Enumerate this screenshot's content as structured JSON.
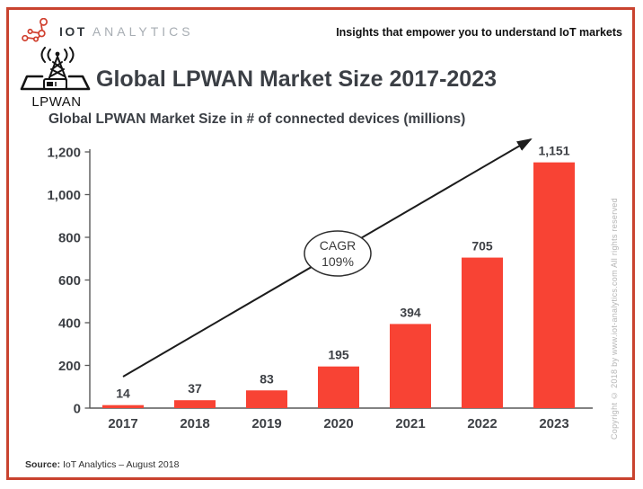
{
  "header": {
    "brand_bold": "IOT",
    "brand_light": "ANALYTICS",
    "tagline": "Insights that empower you to understand IoT markets"
  },
  "title_block": {
    "icon_label": "LPWAN",
    "title": "Global LPWAN Market Size 2017-2023"
  },
  "chart_data": {
    "type": "bar",
    "title": "Global LPWAN Market Size in # of connected devices (millions)",
    "categories": [
      "2017",
      "2018",
      "2019",
      "2020",
      "2021",
      "2022",
      "2023"
    ],
    "values": [
      14,
      37,
      83,
      195,
      394,
      705,
      1151
    ],
    "bar_labels": [
      "14",
      "37",
      "83",
      "195",
      "394",
      "705",
      "1,151"
    ],
    "xlabel": "",
    "ylabel": "",
    "ylim": [
      0,
      1200
    ],
    "ytick_step": 200,
    "ytick_labels": [
      "0",
      "200",
      "400",
      "600",
      "800",
      "1,000",
      "1,200"
    ],
    "grid": false,
    "legend": false,
    "annotation": {
      "lines": [
        "CAGR",
        "109%"
      ]
    },
    "trendline": {
      "from_category": "2017",
      "to_category": "2023",
      "style": "arrow"
    }
  },
  "footer": {
    "source_label": "Source:",
    "source_text": " IoT Analytics – August 2018"
  },
  "copyright_vertical": "Copyright © 2018 by www.iot-analytics.com All rights reserved",
  "colors": {
    "bar": "#f84334",
    "frame_border": "#c9432f",
    "logo_accent": "#d0402f",
    "axis": "#595959",
    "trend_line": "#1c1c1c",
    "text_dark": "#3b3f45",
    "copyright_gray": "#b5b5b5"
  }
}
